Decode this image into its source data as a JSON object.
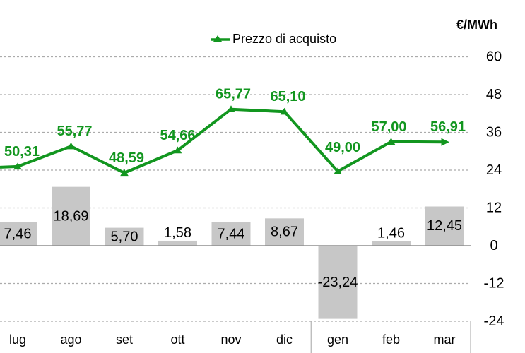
{
  "chart_data": {
    "type": "combo",
    "categories": [
      "lug",
      "ago",
      "set",
      "ott",
      "nov",
      "dic",
      "gen",
      "feb",
      "mar"
    ],
    "series": [
      {
        "name": "Prezzo di acquisto",
        "type": "line",
        "color": "#12961f",
        "values": [
          50.31,
          55.77,
          48.59,
          54.66,
          65.77,
          65.1,
          49.0,
          57.0,
          56.91
        ],
        "labels": [
          "50,31",
          "55,77",
          "48,59",
          "54,66",
          "65,77",
          "65,10",
          "49,00",
          "57,00",
          "56,91"
        ]
      },
      {
        "type": "bar",
        "color": "#c7c7c7",
        "values": [
          7.46,
          18.69,
          5.7,
          1.58,
          7.44,
          8.67,
          -23.24,
          1.46,
          12.45
        ],
        "labels": [
          "7,46",
          "18,69",
          "5,70",
          "1,58",
          "7,44",
          "8,67",
          "-23,24",
          "1,46",
          "12,45"
        ]
      }
    ],
    "right_axis": {
      "unit": "€/MWh",
      "ticks": [
        60,
        48,
        36,
        24,
        12,
        0,
        -12,
        -24
      ],
      "range": [
        -24,
        60
      ]
    },
    "grid": "horizontal-dashed",
    "legend_position": "top-center",
    "category_group_separator_after_index": 5,
    "notes": "chart cropped at left edge; line enters from left border"
  }
}
